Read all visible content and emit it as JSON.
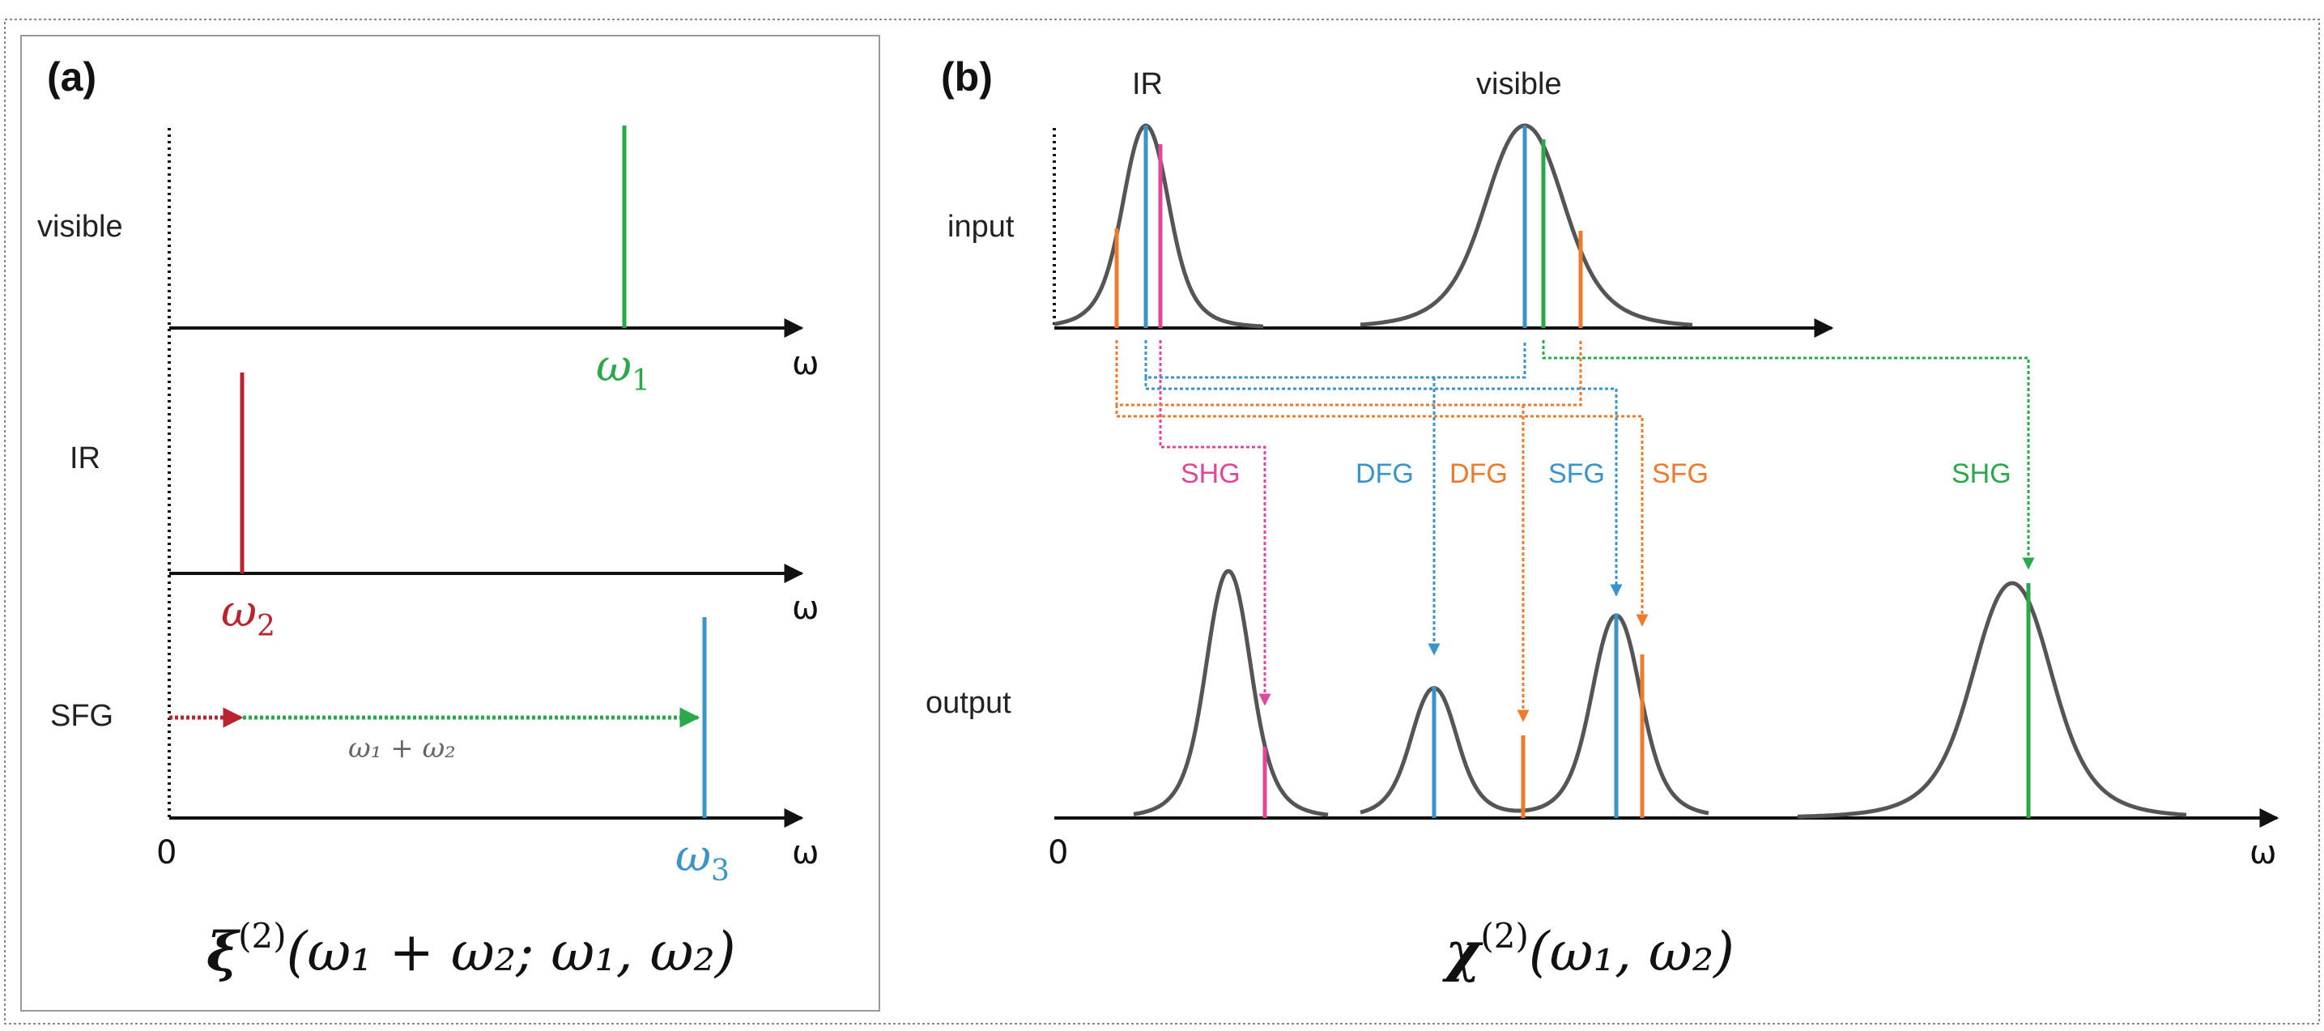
{
  "colors": {
    "black": "#111111",
    "gray": "#555555",
    "green": "#2aa84a",
    "red": "#b8252f",
    "blue": "#3a93c9",
    "orange": "#ee7a2b",
    "pink": "#e0479a",
    "frame": "#888888"
  },
  "panel_a": {
    "label": "(a)",
    "rows": [
      {
        "name": "visible",
        "label": "visible",
        "freq_symbol": "ω",
        "freq_sub": "1",
        "color": "green"
      },
      {
        "name": "ir",
        "label": "IR",
        "freq_symbol": "ω",
        "freq_sub": "2",
        "color": "red"
      },
      {
        "name": "sfg",
        "label": "SFG",
        "freq_symbol": "ω",
        "freq_sub": "3",
        "color": "blue"
      }
    ],
    "sum_label": "ω₁ + ω₂",
    "axis_symbol": "ω",
    "origin_label": "0",
    "formula": {
      "symbol": "ξ",
      "sup": "(2)",
      "args": "(ω₁ + ω₂; ω₁, ω₂)"
    }
  },
  "panel_b": {
    "label": "(b)",
    "input_label": "input",
    "output_label": "output",
    "ir_label": "IR",
    "visible_label": "visible",
    "processes": [
      {
        "name": "shg-ir",
        "label": "SHG",
        "color": "pink"
      },
      {
        "name": "dfg-blue",
        "label": "DFG",
        "color": "blue"
      },
      {
        "name": "dfg-orange",
        "label": "DFG",
        "color": "orange"
      },
      {
        "name": "sfg-blue",
        "label": "SFG",
        "color": "blue"
      },
      {
        "name": "sfg-orange",
        "label": "SFG",
        "color": "orange"
      },
      {
        "name": "shg-vis",
        "label": "SHG",
        "color": "green"
      }
    ],
    "axis_symbol": "ω",
    "origin_label": "0",
    "formula": {
      "symbol": "χ",
      "sup": "(2)",
      "args": "(ω₁, ω₂)"
    }
  }
}
